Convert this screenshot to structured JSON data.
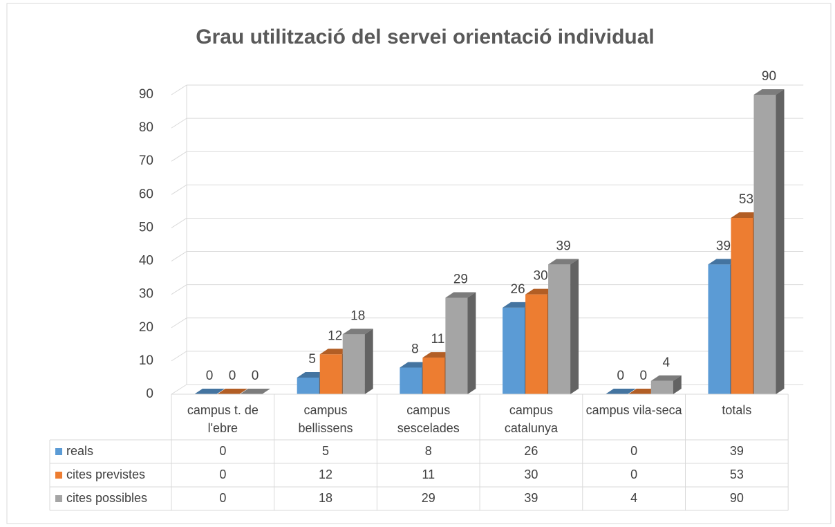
{
  "chart_data": {
    "type": "bar3d",
    "title": "Grau utilització del servei orientació individual",
    "categories": [
      "campus t. de l'ebre",
      "campus bellissens",
      "campus sescelades",
      "campus catalunya",
      "campus vila-seca",
      "totals"
    ],
    "series": [
      {
        "name": "reals",
        "color": "#5b9bd5",
        "values": [
          0,
          5,
          8,
          26,
          0,
          39
        ]
      },
      {
        "name": "cites previstes",
        "color": "#ed7d31",
        "values": [
          0,
          12,
          11,
          30,
          0,
          53
        ]
      },
      {
        "name": "cites possibles",
        "color": "#a5a5a5",
        "values": [
          0,
          18,
          29,
          39,
          4,
          90
        ]
      }
    ],
    "ylim": [
      0,
      90
    ],
    "yticks": [
      0,
      10,
      20,
      30,
      40,
      50,
      60,
      70,
      80,
      90
    ],
    "grid": true,
    "data_table": true
  }
}
